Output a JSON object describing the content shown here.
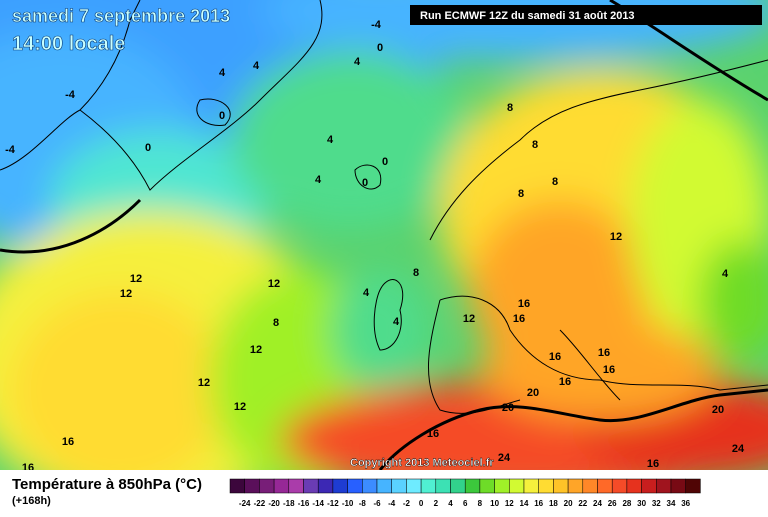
{
  "header": {
    "date": "samedi 7 septembre 2013",
    "time": "14:00 locale",
    "run": "Run ECMWF 12Z du samedi 31 août 2013"
  },
  "copyright": "Copyright 2013 Meteociel.fr",
  "legend": {
    "title": "Température à 850hPa (°C)",
    "lead": "(+168h)",
    "ticks": [
      -24,
      -22,
      -20,
      -18,
      -16,
      -14,
      -12,
      -10,
      -8,
      -6,
      -4,
      -2,
      0,
      2,
      4,
      6,
      8,
      10,
      12,
      14,
      16,
      18,
      20,
      22,
      24,
      26,
      28,
      30,
      32,
      34,
      36
    ],
    "colors": [
      "#3c063c",
      "#5a0f5a",
      "#781e78",
      "#962896",
      "#aa3caa",
      "#6a3cb4",
      "#3c28b4",
      "#1e3cd2",
      "#2860ff",
      "#3c8cff",
      "#46b4ff",
      "#5ad2ff",
      "#6eebff",
      "#50f0d2",
      "#3ce1b4",
      "#32d28c",
      "#3cc83c",
      "#6edc28",
      "#a0f028",
      "#d2fa32",
      "#f5f03c",
      "#ffdc32",
      "#ffc328",
      "#ffa528",
      "#ff8728",
      "#ff6928",
      "#f54b28",
      "#e6321e",
      "#c81e1e",
      "#a0141e",
      "#780a14",
      "#500505"
    ]
  },
  "contour_labels": [
    "-4",
    "0",
    "0",
    "4",
    "4",
    "-4",
    "-4",
    "0",
    "4",
    "4",
    "4",
    "0",
    "0",
    "8",
    "8",
    "8",
    "8",
    "8",
    "4",
    "4",
    "12",
    "12",
    "12",
    "12",
    "8",
    "12",
    "12",
    "12",
    "12",
    "16",
    "16",
    "16",
    "16",
    "16",
    "16",
    "20",
    "20",
    "20",
    "16",
    "24",
    "24",
    "16",
    "16",
    "16",
    "4"
  ]
}
